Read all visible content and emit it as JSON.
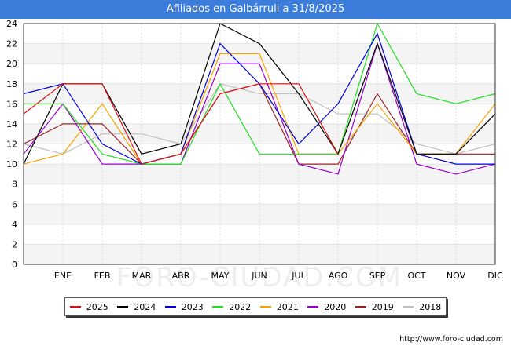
{
  "title": "Afiliados en Galbárruli a 31/8/2025",
  "source_url": "http://www.foro-ciudad.com",
  "watermark": "FORO-CIUDAD.COM",
  "chart_data": {
    "type": "line",
    "title": "Afiliados en Galbárruli a 31/8/2025",
    "xlabel": "",
    "ylabel": "",
    "categories": [
      "",
      "ENE",
      "FEB",
      "MAR",
      "ABR",
      "MAY",
      "JUN",
      "JUL",
      "AGO",
      "SEP",
      "OCT",
      "NOV",
      "DIC"
    ],
    "yticks": [
      "0",
      "2",
      "4",
      "6",
      "8",
      "10",
      "12",
      "14",
      "16",
      "18",
      "20",
      "22",
      "24"
    ],
    "ylim": [
      0,
      24
    ],
    "grid": "horizontal bands",
    "legend_position": "bottom",
    "series": [
      {
        "name": "2025",
        "color": "#dd1111",
        "values": [
          15,
          18,
          18,
          10,
          11,
          17,
          18,
          18,
          11,
          null,
          null,
          null,
          null
        ]
      },
      {
        "name": "2024",
        "color": "#000000",
        "values": [
          10,
          18,
          18,
          11,
          12,
          24,
          22,
          17,
          11,
          22,
          11,
          11,
          15
        ]
      },
      {
        "name": "2023",
        "color": "#0000dd",
        "values": [
          17,
          18,
          12,
          10,
          11,
          22,
          18,
          12,
          16,
          23,
          11,
          10,
          10
        ]
      },
      {
        "name": "2022",
        "color": "#22dd22",
        "values": [
          16,
          16,
          11,
          10,
          10,
          18,
          11,
          11,
          11,
          24,
          17,
          16,
          17
        ]
      },
      {
        "name": "2021",
        "color": "#f5a300",
        "values": [
          10,
          11,
          16,
          10,
          11,
          21,
          21,
          11,
          11,
          16,
          11,
          11,
          16
        ]
      },
      {
        "name": "2020",
        "color": "#9900cc",
        "values": [
          11,
          16,
          10,
          10,
          10,
          20,
          20,
          10,
          9,
          22,
          10,
          9,
          10
        ]
      },
      {
        "name": "2019",
        "color": "#992222",
        "values": [
          12,
          14,
          14,
          10,
          11,
          17,
          18,
          10,
          10,
          17,
          11,
          11,
          11
        ]
      },
      {
        "name": "2018",
        "color": "#c0c0c0",
        "values": [
          12,
          11,
          13,
          13,
          12,
          18,
          17,
          17,
          15,
          15,
          12,
          11,
          12
        ]
      }
    ]
  }
}
